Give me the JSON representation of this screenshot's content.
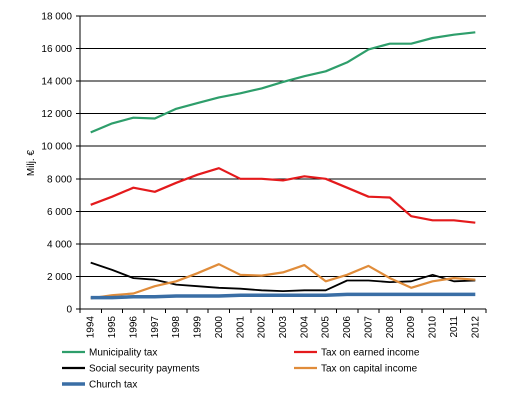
{
  "chart_data": {
    "type": "line",
    "xlabel": "",
    "ylabel": "Milj. €",
    "ylim": [
      0,
      18000
    ],
    "yticks": [
      0,
      2000,
      4000,
      6000,
      8000,
      10000,
      12000,
      14000,
      16000,
      18000
    ],
    "ytick_labels": [
      "0",
      "2 000",
      "4 000",
      "6 000",
      "8 000",
      "10 000",
      "12 000",
      "14 000",
      "16 000",
      "18 000"
    ],
    "categories": [
      "1994",
      "1995",
      "1996",
      "1997",
      "1998",
      "1999",
      "2000",
      "2001",
      "2002",
      "2003",
      "2004",
      "2005",
      "2006",
      "2007",
      "2008",
      "2009",
      "2010",
      "2011",
      "2012"
    ],
    "grid": "horizontal",
    "legend_position": "bottom",
    "series": [
      {
        "name": "Municipality tax",
        "color": "#2e9e6b",
        "values": [
          10850,
          11400,
          11750,
          11700,
          12300,
          12650,
          13000,
          13250,
          13550,
          13950,
          14300,
          14600,
          15150,
          15950,
          16300,
          16300,
          16650,
          16850,
          17000
        ]
      },
      {
        "name": "Tax on earned income",
        "color": "#e41a1c",
        "values": [
          6400,
          6900,
          7450,
          7200,
          7750,
          8250,
          8650,
          8000,
          8000,
          7900,
          8150,
          8000,
          7450,
          6900,
          6850,
          5700,
          5450,
          5450,
          5300
        ]
      },
      {
        "name": "Social security payments",
        "color": "#000000",
        "values": [
          2850,
          2400,
          1900,
          1800,
          1500,
          1400,
          1300,
          1250,
          1150,
          1100,
          1150,
          1150,
          1750,
          1750,
          1650,
          1700,
          2100,
          1700,
          1750
        ]
      },
      {
        "name": "Tax on capital income",
        "color": "#e08c3a",
        "values": [
          650,
          850,
          950,
          1400,
          1700,
          2200,
          2750,
          2100,
          2050,
          2250,
          2700,
          1700,
          2100,
          2650,
          1900,
          1300,
          1700,
          1900,
          1800
        ]
      },
      {
        "name": "Church tax",
        "color": "#3a6ea5",
        "values": [
          700,
          700,
          750,
          750,
          800,
          800,
          800,
          850,
          850,
          850,
          850,
          850,
          900,
          900,
          900,
          900,
          900,
          900,
          900
        ]
      }
    ]
  }
}
